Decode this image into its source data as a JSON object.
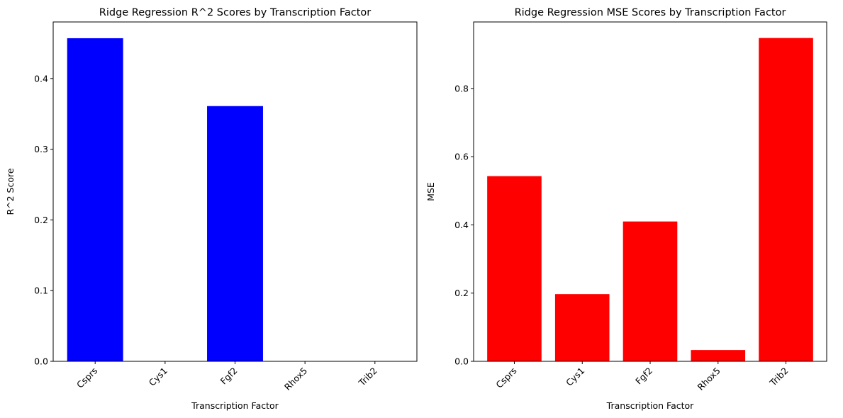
{
  "chart_data": [
    {
      "type": "bar",
      "title": "Ridge Regression R^2 Scores by Transcription Factor",
      "xlabel": "Transcription Factor",
      "ylabel": "R^2 Score",
      "categories": [
        "Csprs",
        "Cys1",
        "Fgf2",
        "Rhox5",
        "Trib2"
      ],
      "values": [
        0.457,
        0.0,
        0.361,
        0.0,
        0.0
      ],
      "ylim": [
        0,
        0.48
      ],
      "yticks": [
        0.0,
        0.1,
        0.2,
        0.3,
        0.4
      ],
      "ytick_labels": [
        "0.0",
        "0.1",
        "0.2",
        "0.3",
        "0.4"
      ],
      "bar_color": "#0000ff",
      "grid": false
    },
    {
      "type": "bar",
      "title": "Ridge Regression MSE Scores by Transcription Factor",
      "xlabel": "Transcription Factor",
      "ylabel": "MSE",
      "categories": [
        "Csprs",
        "Cys1",
        "Fgf2",
        "Rhox5",
        "Trib2"
      ],
      "values": [
        0.543,
        0.197,
        0.41,
        0.033,
        0.948
      ],
      "ylim": [
        0,
        0.995
      ],
      "yticks": [
        0.0,
        0.2,
        0.4,
        0.6,
        0.8
      ],
      "ytick_labels": [
        "0.0",
        "0.2",
        "0.4",
        "0.6",
        "0.8"
      ],
      "bar_color": "#ff0000",
      "grid": false
    }
  ]
}
